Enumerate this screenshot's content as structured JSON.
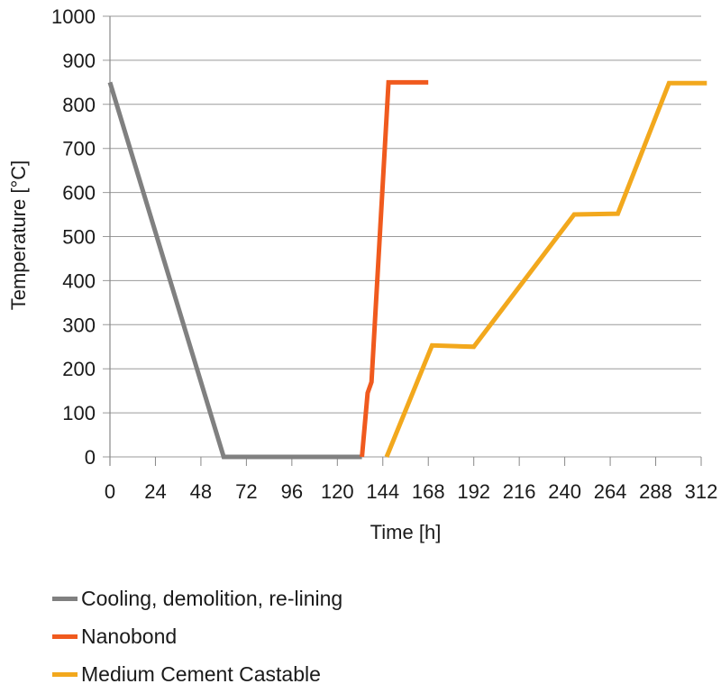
{
  "chart_data": {
    "type": "line",
    "xlabel": "Time [h]",
    "ylabel": "Temperature [°C]",
    "xlim": [
      0,
      312
    ],
    "ylim": [
      0,
      1000
    ],
    "xticks": [
      0,
      24,
      48,
      72,
      96,
      120,
      144,
      168,
      192,
      216,
      240,
      264,
      288,
      312
    ],
    "yticks": [
      0,
      100,
      200,
      300,
      400,
      500,
      600,
      700,
      800,
      900,
      1000
    ],
    "grid": "horizontal",
    "legend_position": "bottom",
    "series": [
      {
        "name": "Cooling, demolition, re-lining",
        "color": "#808080",
        "points": [
          [
            0,
            850
          ],
          [
            60,
            0
          ],
          [
            133,
            0
          ]
        ]
      },
      {
        "name": "Nanobond",
        "color": "#f05a1e",
        "points": [
          [
            133,
            0
          ],
          [
            136,
            145
          ],
          [
            138,
            170
          ],
          [
            147,
            850
          ],
          [
            168,
            850
          ]
        ]
      },
      {
        "name": "Medium Cement Castable",
        "color": "#f2a81d",
        "points": [
          [
            146,
            0
          ],
          [
            170,
            253
          ],
          [
            192,
            250
          ],
          [
            245,
            550
          ],
          [
            268,
            552
          ],
          [
            295,
            848
          ],
          [
            315,
            848
          ]
        ]
      }
    ]
  }
}
